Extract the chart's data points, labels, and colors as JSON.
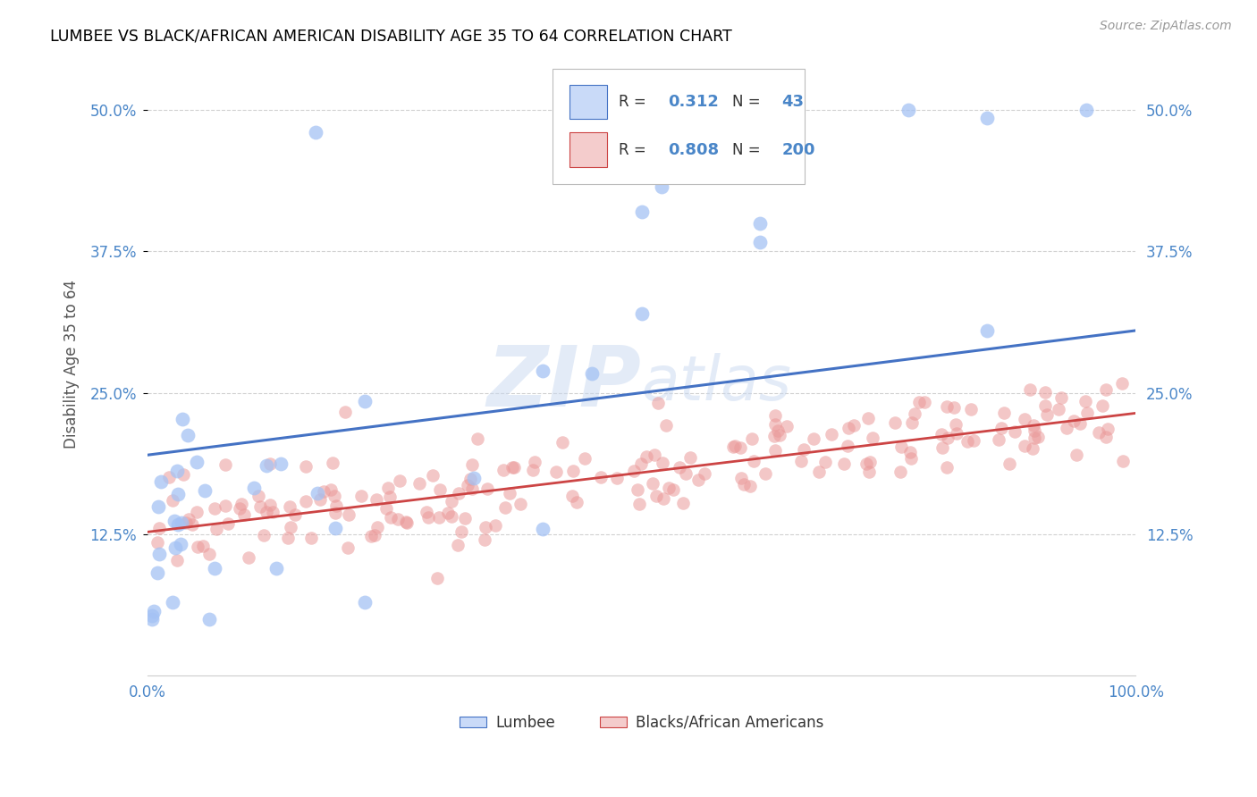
{
  "title": "LUMBEE VS BLACK/AFRICAN AMERICAN DISABILITY AGE 35 TO 64 CORRELATION CHART",
  "source": "Source: ZipAtlas.com",
  "ylabel": "Disability Age 35 to 64",
  "ytick_labels": [
    "12.5%",
    "25.0%",
    "37.5%",
    "50.0%"
  ],
  "ytick_values": [
    0.125,
    0.25,
    0.375,
    0.5
  ],
  "xlim": [
    0.0,
    1.0
  ],
  "ylim": [
    0.0,
    0.55
  ],
  "legend_r_blue": "0.312",
  "legend_n_blue": "43",
  "legend_r_pink": "0.808",
  "legend_n_pink": "200",
  "legend_label_blue": "Lumbee",
  "legend_label_pink": "Blacks/African Americans",
  "blue_color": "#a4c2f4",
  "pink_color": "#ea9999",
  "blue_face_color": "#c9daf8",
  "pink_face_color": "#f4cccc",
  "blue_line_color": "#4472c4",
  "pink_line_color": "#cc4444",
  "background_color": "#ffffff",
  "grid_color": "#cccccc",
  "title_color": "#000000",
  "axis_label_color": "#4a86c8",
  "watermark_color": "#c8d8f0",
  "blue_line_start_y": 0.195,
  "blue_line_end_y": 0.305,
  "pink_line_start_y": 0.127,
  "pink_line_end_y": 0.232
}
